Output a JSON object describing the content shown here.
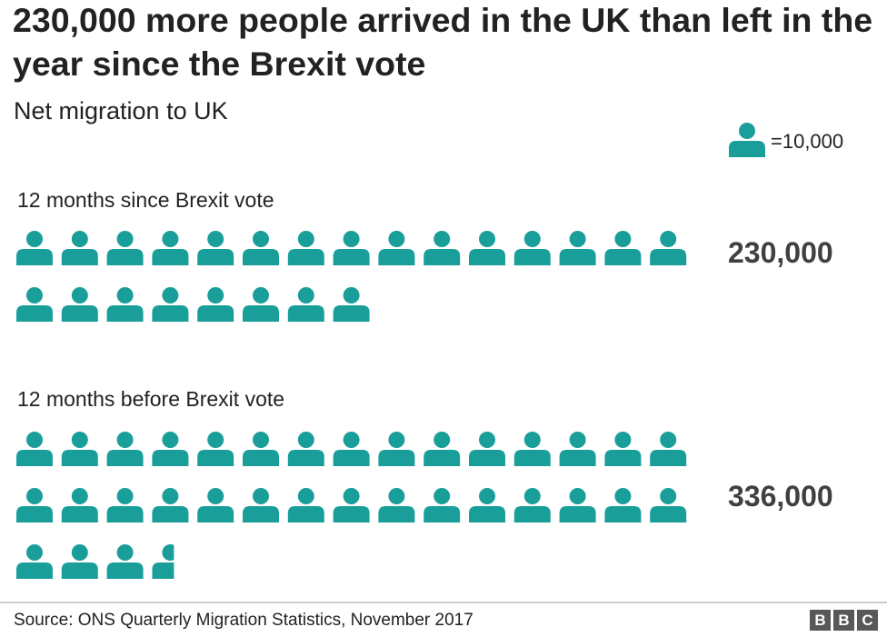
{
  "chart_data": {
    "type": "pictogram",
    "title": "230,000 more people arrived in the UK than left in the year since the Brexit vote",
    "subtitle": "Net migration to UK",
    "unit_label": "=10,000",
    "unit_value": 10000,
    "icons_per_row": 15,
    "color": "#1a9e9a",
    "series": [
      {
        "name": "12 months since Brexit vote",
        "value": 230000,
        "value_label": "230,000"
      },
      {
        "name": "12 months before Brexit vote",
        "value": 336000,
        "value_label": "336,000"
      }
    ],
    "source": "Source: ONS Quarterly Migration Statistics, November 2017"
  },
  "branding": {
    "logo": [
      "B",
      "B",
      "C"
    ]
  }
}
